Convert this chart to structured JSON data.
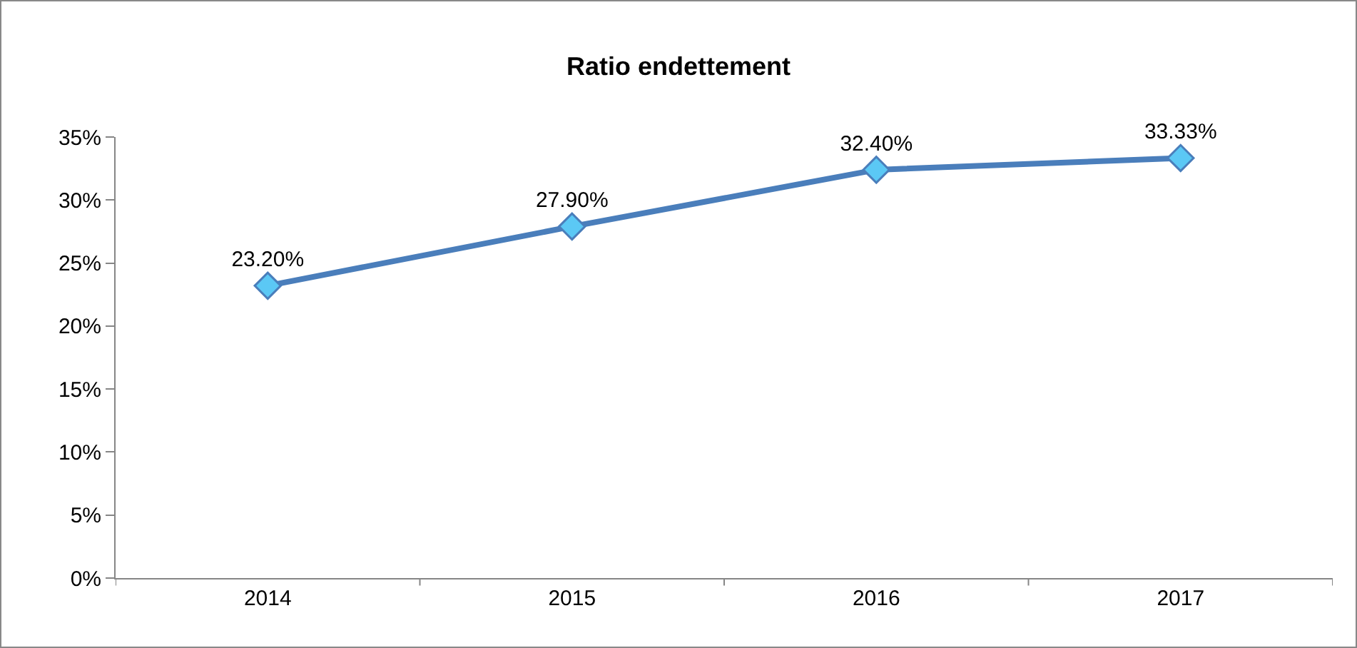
{
  "chart_data": {
    "type": "line",
    "title": "Ratio endettement",
    "categories": [
      "2014",
      "2015",
      "2016",
      "2017"
    ],
    "series": [
      {
        "color": "#4a7ebb",
        "values": [
          23.2,
          27.9,
          32.4,
          33.33
        ],
        "value_labels": [
          "23.20%",
          "27.90%",
          "32.40%",
          "33.33%"
        ]
      }
    ],
    "ylim": [
      0,
      35
    ],
    "yticks": [
      {
        "value": 0,
        "label": "0%"
      },
      {
        "value": 5,
        "label": "5%"
      },
      {
        "value": 10,
        "label": "10%"
      },
      {
        "value": 15,
        "label": "15%"
      },
      {
        "value": 20,
        "label": "20%"
      },
      {
        "value": 25,
        "label": "25%"
      },
      {
        "value": 30,
        "label": "30%"
      },
      {
        "value": 35,
        "label": "35%"
      }
    ],
    "grid": false,
    "marker": "diamond",
    "line_style": "solid"
  }
}
